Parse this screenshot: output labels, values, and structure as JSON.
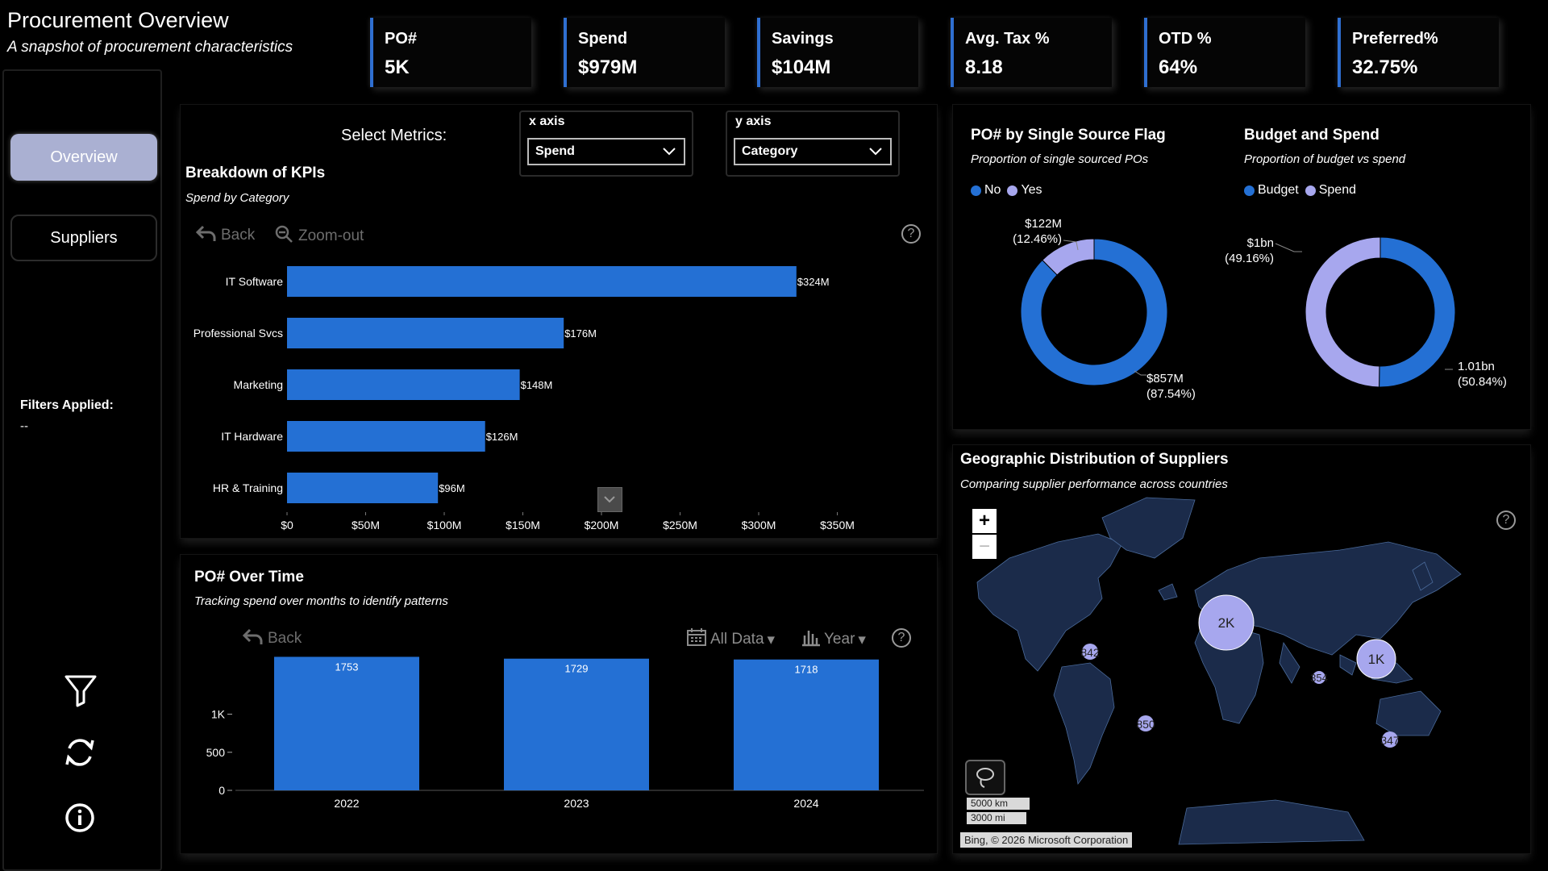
{
  "header": {
    "title": "Procurement Overview",
    "subtitle": "A snapshot of procurement characteristics"
  },
  "kpis": [
    {
      "label": "PO#",
      "value": "5K"
    },
    {
      "label": "Spend",
      "value": "$979M"
    },
    {
      "label": "Savings",
      "value": "$104M"
    },
    {
      "label": "Avg. Tax %",
      "value": "8.18"
    },
    {
      "label": "OTD %",
      "value": "64%"
    },
    {
      "label": "Preferred%",
      "value": "32.75%"
    }
  ],
  "nav": {
    "overview": "Overview",
    "suppliers": "Suppliers",
    "filters_label": "Filters Applied:",
    "filters_value": "--"
  },
  "metrics": {
    "label": "Select Metrics:",
    "x_axis_label": "x axis",
    "x_axis_value": "Spend",
    "y_axis_label": "y axis",
    "y_axis_value": "Category"
  },
  "kpi_breakdown": {
    "title": "Breakdown of KPIs",
    "subtitle": "Spend by Category",
    "back": "Back",
    "zoom_out": "Zoom-out",
    "help": "?"
  },
  "po_time": {
    "title": "PO# Over Time",
    "subtitle": "Tracking spend over months to identify patterns",
    "back": "Back",
    "all_data": "All Data",
    "year": "Year",
    "help": "?"
  },
  "single_source": {
    "title": "PO# by Single Source Flag",
    "subtitle": "Proportion of single sourced POs",
    "legend": [
      "No",
      "Yes"
    ]
  },
  "budget_spend": {
    "title": "Budget and Spend",
    "subtitle": "Proportion of budget vs spend",
    "legend": [
      "Budget",
      "Spend"
    ]
  },
  "geo": {
    "title": "Geographic Distribution of Suppliers",
    "subtitle": "Comparing supplier performance across countries",
    "zoom_in": "+",
    "zoom_out": "−",
    "scale_km": "5000 km",
    "scale_mi": "3000 mi",
    "attribution": "Bing, © 2026 Microsoft Corporation",
    "help": "?",
    "bubbles": [
      {
        "label": "2K"
      },
      {
        "label": "1K"
      },
      {
        "label": "842"
      },
      {
        "label": "850"
      },
      {
        "label": "354"
      },
      {
        "label": "347"
      }
    ]
  },
  "colors": {
    "accent": "#2f6fd1",
    "bar": "#2470d4",
    "light": "#a7a7ee",
    "map_land": "#1b2b4a",
    "map_border": "#4a6a9a"
  },
  "chart_data": [
    {
      "type": "bar",
      "orientation": "horizontal",
      "title": "Breakdown of KPIs",
      "subtitle": "Spend by Category",
      "categories": [
        "IT Software",
        "Professional Svcs",
        "Marketing",
        "IT Hardware",
        "HR & Training"
      ],
      "values": [
        324,
        176,
        148,
        126,
        96
      ],
      "value_labels": [
        "$324M",
        "$176M",
        "$148M",
        "$126M",
        "$96M"
      ],
      "xticks": [
        "$0",
        "$50M",
        "$100M",
        "$150M",
        "$200M",
        "$250M",
        "$300M",
        "$350M"
      ],
      "xlim": [
        0,
        400
      ]
    },
    {
      "type": "bar",
      "title": "PO# Over Time",
      "categories": [
        "2022",
        "2023",
        "2024"
      ],
      "values": [
        1753,
        1729,
        1718
      ],
      "value_labels": [
        "1753",
        "1729",
        "1718"
      ],
      "yticks": [
        "0",
        "500",
        "1K"
      ],
      "ylim": [
        0,
        1800
      ]
    },
    {
      "type": "pie",
      "title": "PO# by Single Source Flag",
      "series": [
        {
          "name": "No",
          "value": 857,
          "label": "$857M",
          "pct": "(87.54%)"
        },
        {
          "name": "Yes",
          "value": 122,
          "label": "$122M",
          "pct": "(12.46%)"
        }
      ]
    },
    {
      "type": "pie",
      "title": "Budget and Spend",
      "series": [
        {
          "name": "Budget",
          "value": 1.01,
          "label": "1.01bn",
          "pct": "(50.84%)"
        },
        {
          "name": "Spend",
          "value": 1,
          "label": "$1bn",
          "pct": "(49.16%)"
        }
      ]
    }
  ]
}
